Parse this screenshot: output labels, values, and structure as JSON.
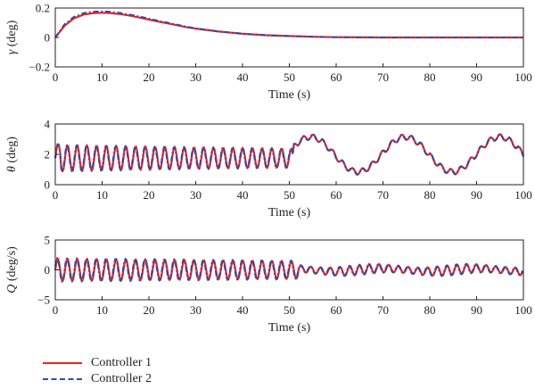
{
  "chart_data": [
    {
      "type": "line",
      "ylabel_symbol": "γ",
      "ylabel_unit": "(deg)",
      "xlabel": "Time (s)",
      "xlim": [
        0,
        100
      ],
      "ylim": [
        -0.2,
        0.2
      ],
      "xticks": [
        "0",
        "10",
        "20",
        "30",
        "40",
        "50",
        "60",
        "70",
        "80",
        "90",
        "100"
      ],
      "yticks": [
        "0.2",
        "0",
        "−0.2"
      ],
      "ytick_values": [
        0.2,
        0,
        -0.2
      ],
      "series": [
        {
          "name": "Controller 1",
          "x": [
            0,
            2,
            4,
            6,
            8,
            10,
            12,
            14,
            16,
            18,
            20,
            22,
            25,
            28,
            30,
            35,
            40,
            45,
            50,
            55,
            60,
            70,
            80,
            90,
            100
          ],
          "y": [
            0,
            0.08,
            0.13,
            0.155,
            0.165,
            0.168,
            0.165,
            0.158,
            0.148,
            0.135,
            0.122,
            0.108,
            0.09,
            0.07,
            0.06,
            0.04,
            0.025,
            0.015,
            0.01,
            0.005,
            0.002,
            0,
            0,
            0,
            0
          ]
        },
        {
          "name": "Controller 2",
          "x": [
            0,
            2,
            4,
            6,
            8,
            10,
            12,
            14,
            16,
            18,
            20,
            22,
            25,
            28,
            30,
            35,
            40,
            45,
            50,
            55,
            60,
            70,
            80,
            90,
            100
          ],
          "y": [
            0,
            0.09,
            0.14,
            0.165,
            0.175,
            0.178,
            0.174,
            0.166,
            0.155,
            0.142,
            0.128,
            0.113,
            0.094,
            0.073,
            0.062,
            0.041,
            0.026,
            0.016,
            0.01,
            0.005,
            0.002,
            0,
            0,
            0,
            0
          ]
        }
      ]
    },
    {
      "type": "line",
      "ylabel_symbol": "θ",
      "ylabel_unit": "(deg)",
      "xlabel": "Time (s)",
      "xlim": [
        0,
        100
      ],
      "ylim": [
        0,
        4
      ],
      "xticks": [
        "0",
        "10",
        "20",
        "30",
        "40",
        "50",
        "60",
        "70",
        "80",
        "90",
        "100"
      ],
      "yticks": [
        "4",
        "2",
        "0"
      ],
      "ytick_values": [
        4,
        2,
        0
      ],
      "series": [
        {
          "name": "Controller 1",
          "x": [],
          "y": []
        },
        {
          "name": "Controller 2",
          "x": [],
          "y": []
        }
      ]
    },
    {
      "type": "line",
      "ylabel_symbol": "Q",
      "ylabel_unit": "(deg/s)",
      "xlabel": "Time (s)",
      "xlim": [
        0,
        100
      ],
      "ylim": [
        -5,
        5
      ],
      "xticks": [
        "0",
        "10",
        "20",
        "30",
        "40",
        "50",
        "60",
        "70",
        "80",
        "90",
        "100"
      ],
      "yticks": [
        "5",
        "0",
        "−5"
      ],
      "ytick_values": [
        5,
        0,
        -5
      ],
      "series": [
        {
          "name": "Controller 1",
          "x": [],
          "y": []
        },
        {
          "name": "Controller 2",
          "x": [],
          "y": []
        }
      ]
    }
  ],
  "legend": {
    "placement": "bottom-left",
    "items": [
      {
        "label": "Controller 1",
        "color": "#e8232a",
        "style": "solid"
      },
      {
        "label": "Controller 2",
        "color": "#2b4fa3",
        "style": "dashdot"
      }
    ]
  },
  "colors": {
    "controller_1": "#e8232a",
    "controller_2": "#2b4fa3",
    "axis": "#231f20"
  }
}
